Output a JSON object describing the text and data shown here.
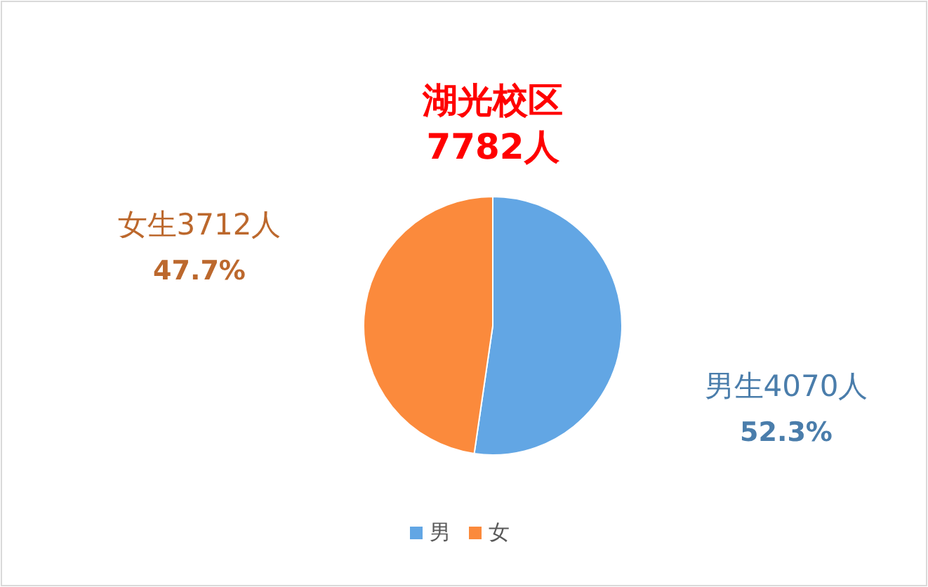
{
  "chart_data": {
    "type": "pie",
    "title": "湖光校区",
    "subtitle": "7782人",
    "categories": [
      "男",
      "女"
    ],
    "values": [
      4070,
      3712
    ],
    "colors": [
      "#62a6e4",
      "#fb8a3c"
    ],
    "value_labels": [
      "男生4070人\n52.3%",
      "女生3712人\n47.7%"
    ],
    "legend": "bottom"
  }
}
